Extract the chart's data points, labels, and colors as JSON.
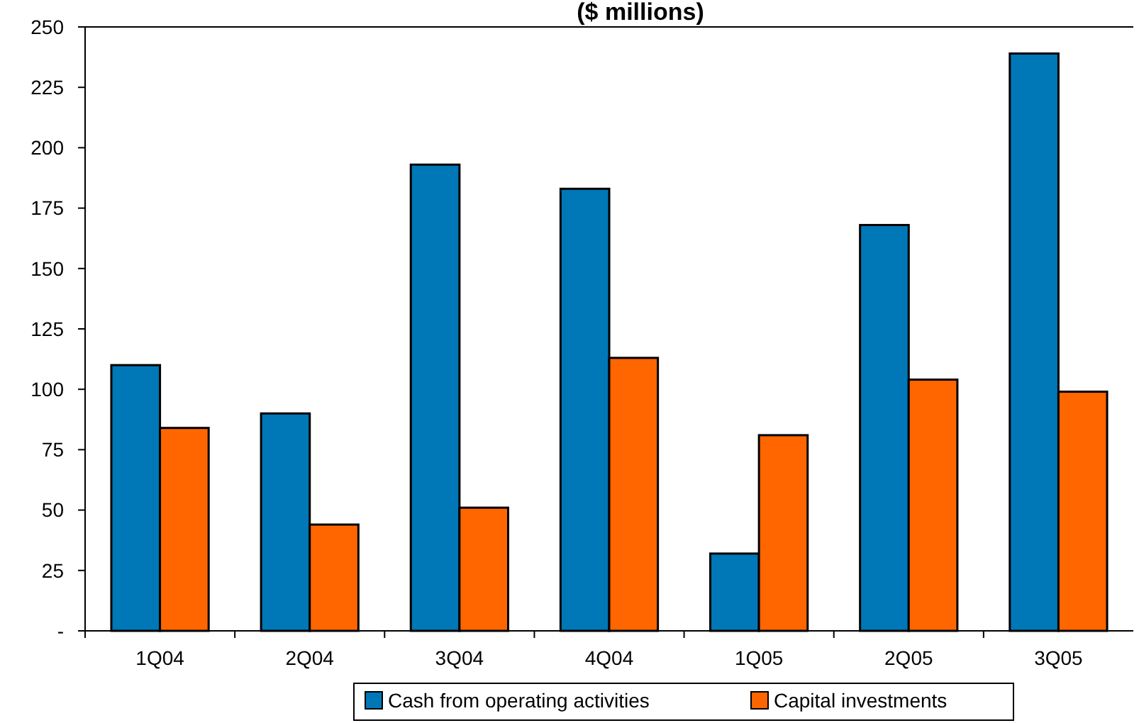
{
  "chart_data": {
    "type": "bar",
    "title": "($ millions)",
    "categories": [
      "1Q04",
      "2Q04",
      "3Q04",
      "4Q04",
      "1Q05",
      "2Q05",
      "3Q05"
    ],
    "series": [
      {
        "name": "Cash from operating activities",
        "color": "#0077b6",
        "values": [
          110,
          90,
          193,
          183,
          32,
          168,
          239
        ]
      },
      {
        "name": "Capital investments",
        "color": "#ff6600",
        "values": [
          84,
          44,
          51,
          113,
          81,
          104,
          99
        ]
      }
    ],
    "ylim": [
      0,
      250
    ],
    "yticks": [
      {
        "value": 0,
        "label": "-"
      },
      25,
      50,
      75,
      100,
      125,
      150,
      175,
      200,
      225,
      250
    ],
    "grid": false,
    "legend": "bottom"
  }
}
